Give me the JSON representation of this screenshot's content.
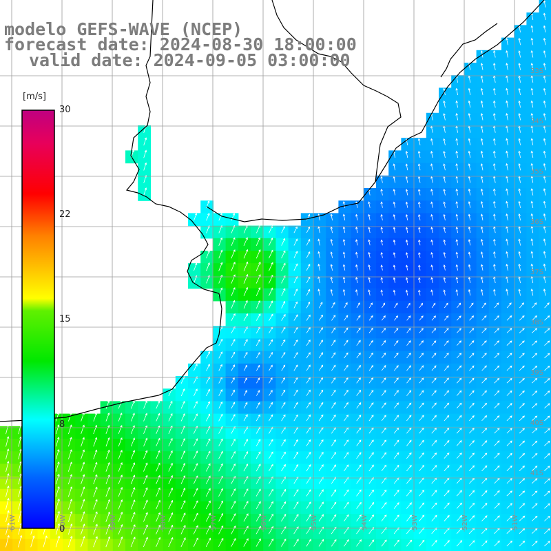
{
  "title": {
    "line1": "modelo GEFS-WAVE (NCEP)",
    "line2": "forecast date: 2024-08-30 18:00:00",
    "line3": "valid date: 2024-09-05 03:00:00"
  },
  "colorbar": {
    "unit": "[m/s]",
    "ticks": [
      "30",
      "22",
      "15",
      "8",
      "0"
    ],
    "colors": [
      "#0000ff",
      "#00c8ff",
      "#00ffff",
      "#00ff00",
      "#ffff00",
      "#ff7f00",
      "#ff0000",
      "#c8008c"
    ]
  },
  "map": {
    "lat_labels": [
      "33S",
      "34S",
      "35S",
      "36S",
      "37S",
      "38S",
      "39S",
      "40S",
      "41S"
    ],
    "lon_labels": [
      "61W",
      "60W",
      "59W",
      "58W",
      "57W",
      "56W",
      "55W",
      "54W",
      "53W",
      "52W",
      "51W"
    ],
    "land_color": "#ffffff",
    "coast_color": "#000000",
    "grid_color": "#9a9a9a",
    "arrow_color": "#ffffff"
  }
}
